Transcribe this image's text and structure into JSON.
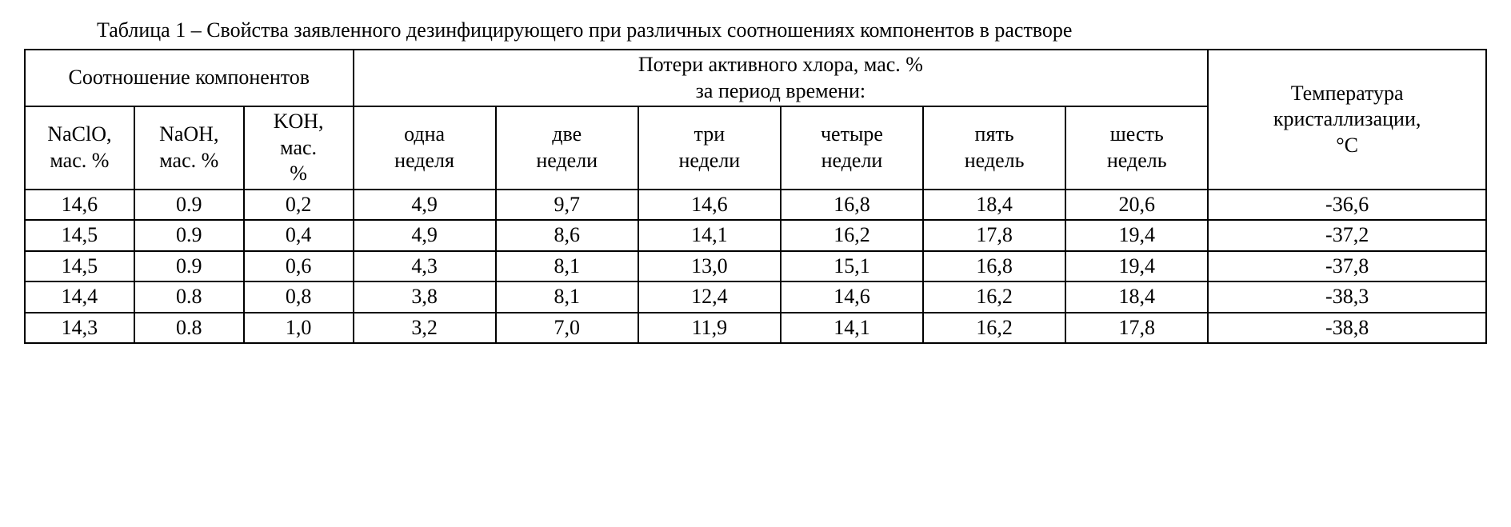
{
  "caption_prefix": "Таблица 1 – ",
  "caption_rest": "Свойства заявленного дезинфицирующего при различных соотношениях компонентов в растворе",
  "headers": {
    "comp_group": "Соотношение компонентов",
    "loss_group_l1": "Потери активного хлора, мас. %",
    "loss_group_l2": "за период времени:",
    "temp_l1": "Температура",
    "temp_l2": "кристаллизации,",
    "temp_l3": "°C",
    "naclo_l1": "NaClO,",
    "naclo_l2": "мас. %",
    "naoh_l1": "NaOH,",
    "naoh_l2": "мас. %",
    "koh_l1": "KOH,",
    "koh_l2": "мас.",
    "koh_l3": "%",
    "w1_l1": "одна",
    "w1_l2": "неделя",
    "w2_l1": "две",
    "w2_l2": "недели",
    "w3_l1": "три",
    "w3_l2": "недели",
    "w4_l1": "четыре",
    "w4_l2": "недели",
    "w5_l1": "пять",
    "w5_l2": "недель",
    "w6_l1": "шесть",
    "w6_l2": "недель"
  },
  "rows": [
    {
      "naclo": "14,6",
      "naoh": "0.9",
      "koh": "0,2",
      "w1": "4,9",
      "w2": "9,7",
      "w3": "14,6",
      "w4": "16,8",
      "w5": "18,4",
      "w6": "20,6",
      "temp": "-36,6"
    },
    {
      "naclo": "14,5",
      "naoh": "0.9",
      "koh": "0,4",
      "w1": "4,9",
      "w2": "8,6",
      "w3": "14,1",
      "w4": "16,2",
      "w5": "17,8",
      "w6": "19,4",
      "temp": "-37,2"
    },
    {
      "naclo": "14,5",
      "naoh": "0.9",
      "koh": "0,6",
      "w1": "4,3",
      "w2": "8,1",
      "w3": "13,0",
      "w4": "15,1",
      "w5": "16,8",
      "w6": "19,4",
      "temp": "-37,8"
    },
    {
      "naclo": "14,4",
      "naoh": "0.8",
      "koh": "0,8",
      "w1": "3,8",
      "w2": "8,1",
      "w3": "12,4",
      "w4": "14,6",
      "w5": "16,2",
      "w6": "18,4",
      "temp": "-38,3"
    },
    {
      "naclo": "14,3",
      "naoh": "0.8",
      "koh": "1,0",
      "w1": "3,2",
      "w2": "7,0",
      "w3": "11,9",
      "w4": "14,1",
      "w5": "16,2",
      "w6": "17,8",
      "temp": "-38,8"
    }
  ]
}
